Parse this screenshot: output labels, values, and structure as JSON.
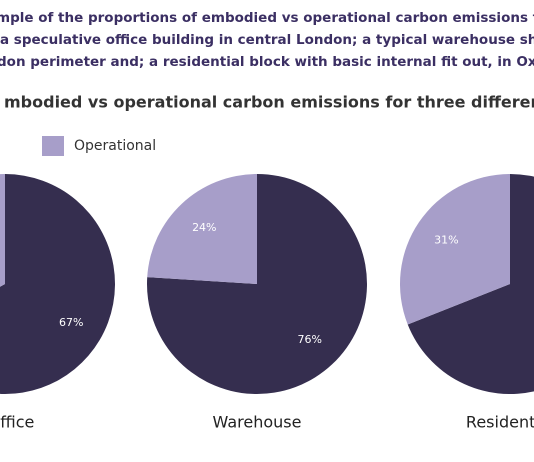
{
  "caption": [
    "mple of the proportions of embodied vs operational carbon emissions for diff",
    "a speculative office building in central London; a typical warehouse shed w",
    "don perimeter and; a residential block with basic internal fit out, in Oxford."
  ],
  "chart_data": {
    "type": "pie",
    "title": "mbodied vs operational carbon emissions for three different build",
    "categories": [
      "Office",
      "Warehouse",
      "Residential"
    ],
    "series": [
      {
        "color": "#352e4f",
        "values": [
          67,
          76,
          69
        ],
        "value_labels": [
          "67%",
          "76%",
          null
        ]
      },
      {
        "name": "Operational",
        "color": "#a79ec9",
        "values": [
          33,
          24,
          31
        ],
        "value_labels": [
          null,
          "24%",
          "31%"
        ]
      }
    ]
  }
}
